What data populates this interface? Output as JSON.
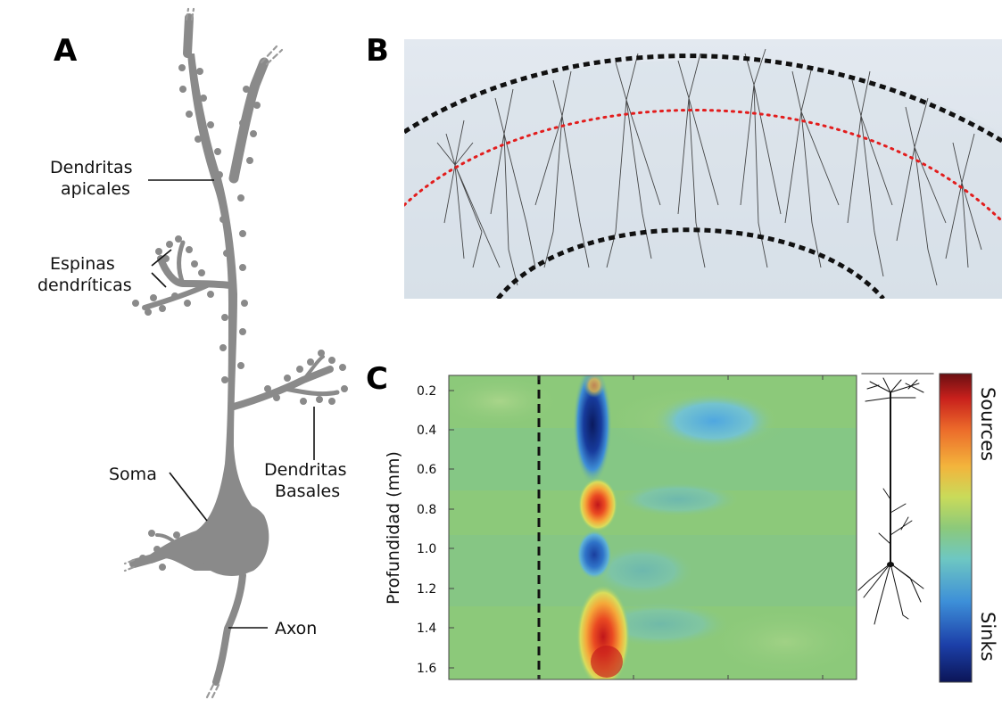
{
  "panels": {
    "a": {
      "letter": "A",
      "labels": {
        "apical_line1": "Dendritas",
        "apical_line2": "apicales",
        "spines_line1": "Espinas",
        "spines_line2": "dendríticas",
        "soma": "Soma",
        "basal_line1": "Dendritas",
        "basal_line2": "Basales",
        "axon": "Axon"
      }
    },
    "b": {
      "letter": "B"
    },
    "c": {
      "letter": "C",
      "ylabel": "Profundidad (mm)",
      "yticks": [
        "0.2",
        "0.4",
        "0.6",
        "0.8",
        "1.0",
        "1.2",
        "1.4",
        "1.6"
      ],
      "colorbar_top": "Sources",
      "colorbar_bottom": "Sinks"
    }
  },
  "colors": {
    "neuron_gray": "#8a8a8a",
    "background_blue": "#dfe6ee",
    "field_green": "#8cc97a",
    "sink_blue": "#0d2f8c",
    "source_red": "#e23a1c"
  },
  "chart_data": {
    "type": "heatmap",
    "ylabel": "Profundidad (mm)",
    "ylim": [
      0.15,
      1.65
    ],
    "yticks": [
      0.2,
      0.4,
      0.6,
      0.8,
      1.0,
      1.2,
      1.4,
      1.6
    ],
    "colorbar": [
      "Sinks",
      "Sources"
    ],
    "features": [
      {
        "kind": "sink",
        "depth_range": [
          0.17,
          0.6
        ]
      },
      {
        "kind": "source",
        "depth_range": [
          0.68,
          0.86
        ]
      },
      {
        "kind": "sink",
        "depth_range": [
          0.92,
          1.13
        ]
      },
      {
        "kind": "source",
        "depth_range": [
          1.18,
          1.62
        ]
      },
      {
        "kind": "weak sink",
        "depth_range": [
          0.28,
          0.48
        ]
      }
    ]
  }
}
